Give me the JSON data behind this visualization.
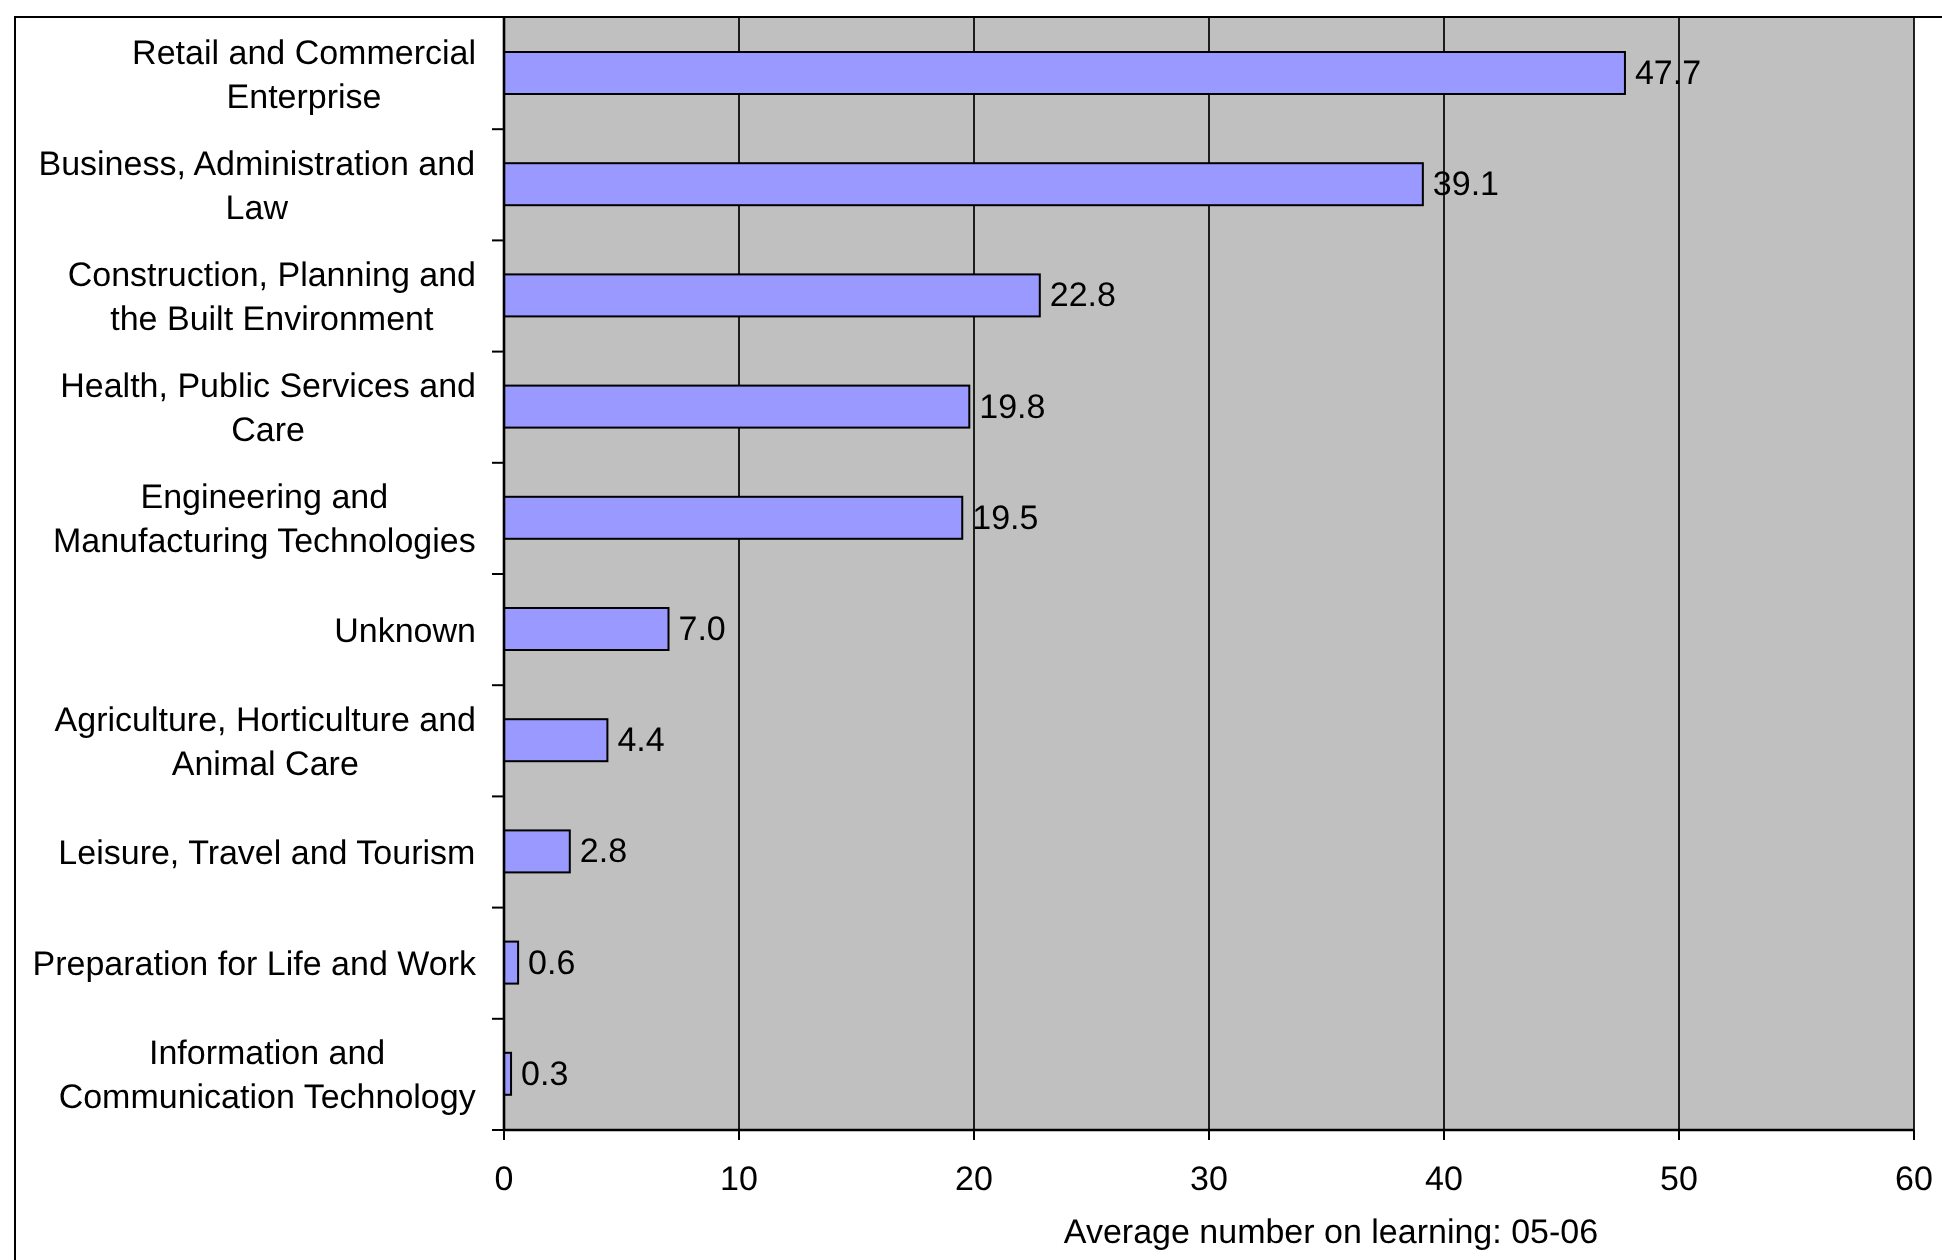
{
  "chart_data": {
    "type": "bar",
    "orientation": "horizontal",
    "categories": [
      "Retail and Commercial Enterprise",
      "Business, Administration and Law",
      "Construction, Planning and the Built Environment",
      "Health, Public Services and Care",
      "Engineering and Manufacturing Technologies",
      "Unknown",
      "Agriculture, Horticulture and Animal Care",
      "Leisure, Travel and Tourism",
      "Preparation for Life and Work",
      "Information and Communication Technology"
    ],
    "values": [
      47.7,
      39.1,
      22.8,
      19.8,
      19.5,
      7.0,
      4.4,
      2.8,
      0.6,
      0.3
    ],
    "value_labels": [
      "47.7",
      "39.1",
      "22.8",
      "19.8",
      "19.5",
      "7.0",
      "4.4",
      "2.8",
      "0.6",
      "0.3"
    ],
    "color": "#9999ff",
    "xlabel": "Average number on learning: 05-06",
    "xlim": [
      0,
      60
    ],
    "xticks": [
      0,
      10,
      20,
      30,
      40,
      50,
      60
    ],
    "grid": "x"
  }
}
